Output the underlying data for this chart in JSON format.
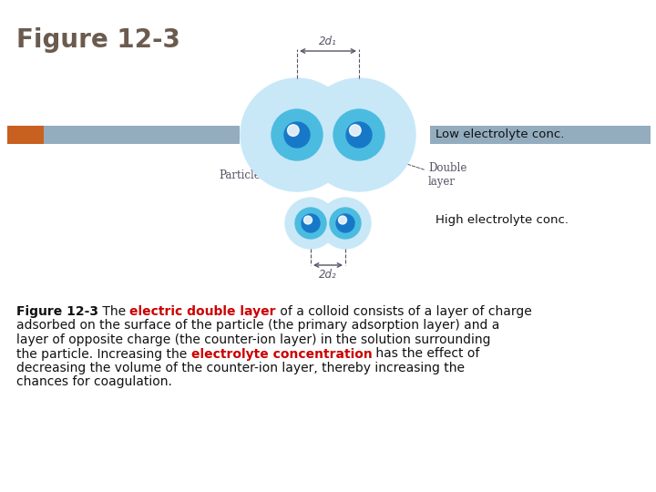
{
  "title": "Figure 12-3",
  "title_color": "#6B5B4E",
  "title_fontsize": 20,
  "bg_color": "#ffffff",
  "bar_color_orange": "#C86020",
  "bar_color_blue": "#93ADBF",
  "outer_circle_color_low": "#C8E8F8",
  "outer_circle_color_high": "#B8DCF0",
  "inner_circle_color": "#4BBCE0",
  "core_color": "#1878C8",
  "highlight_color": "#FFFFFF",
  "line_color": "#555566",
  "low_label": "Low electrolyte conc.",
  "high_label": "High electrolyte conc.",
  "particle_label": "Particle",
  "double_layer_label": "Double\nlayer",
  "d1_label": "2d₁",
  "d2_label": "2d₂",
  "caption_fontsize": 10.0,
  "caption_color": "#111111",
  "caption_red_color": "#CC0000",
  "label_fontsize": 9.5,
  "annot_fontsize": 8.5
}
